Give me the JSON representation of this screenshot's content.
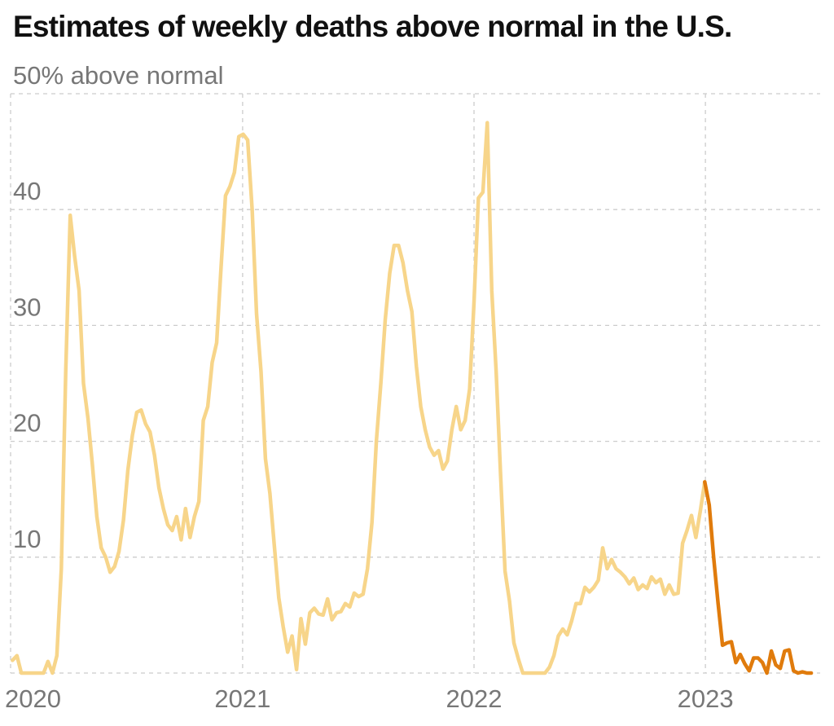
{
  "title": "Estimates of weekly deaths above normal in the U.S.",
  "colors": {
    "history": "#f7d58a",
    "recent": "#e07b0c",
    "grid": "#cccccc",
    "tick": "#777777"
  },
  "chart_data": {
    "type": "line",
    "title": "Estimates of weekly deaths above normal in the U.S.",
    "ylabel": "",
    "ylim": [
      0,
      50
    ],
    "xlim": [
      "2020-01-01",
      "2023-07-01"
    ],
    "grid": true,
    "y_ticks": [
      {
        "value": 50,
        "label": "50% above normal"
      },
      {
        "value": 40,
        "label": "40"
      },
      {
        "value": 30,
        "label": "30"
      },
      {
        "value": 20,
        "label": "20"
      },
      {
        "value": 10,
        "label": "10"
      }
    ],
    "x_ticks": [
      {
        "value": "2020-01-01",
        "label": "2020"
      },
      {
        "value": "2021-01-01",
        "label": "2021"
      },
      {
        "value": "2022-01-01",
        "label": "2022"
      },
      {
        "value": "2023-01-01",
        "label": "2023"
      }
    ],
    "series": [
      {
        "points": [
          [
            "2020-01-04",
            1.1
          ],
          [
            "2020-01-11",
            1.5
          ],
          [
            "2020-01-18",
            0
          ],
          [
            "2020-01-25",
            0
          ],
          [
            "2020-02-01",
            0
          ],
          [
            "2020-02-08",
            0
          ],
          [
            "2020-02-15",
            0
          ],
          [
            "2020-02-22",
            0
          ],
          [
            "2020-02-29",
            1
          ],
          [
            "2020-03-07",
            0
          ],
          [
            "2020-03-14",
            1.5
          ],
          [
            "2020-03-21",
            9
          ],
          [
            "2020-03-28",
            26
          ],
          [
            "2020-04-04",
            39.5
          ],
          [
            "2020-04-11",
            36
          ],
          [
            "2020-04-18",
            33
          ],
          [
            "2020-04-25",
            25
          ],
          [
            "2020-05-02",
            22
          ],
          [
            "2020-05-09",
            18
          ],
          [
            "2020-05-16",
            13.5
          ],
          [
            "2020-05-23",
            10.8
          ],
          [
            "2020-05-30",
            10
          ],
          [
            "2020-06-06",
            8.7
          ],
          [
            "2020-06-13",
            9.2
          ],
          [
            "2020-06-20",
            10.5
          ],
          [
            "2020-06-27",
            13.2
          ],
          [
            "2020-07-04",
            17.5
          ],
          [
            "2020-07-11",
            20.5
          ],
          [
            "2020-07-18",
            22.5
          ],
          [
            "2020-07-25",
            22.7
          ],
          [
            "2020-08-01",
            21.5
          ],
          [
            "2020-08-08",
            20.8
          ],
          [
            "2020-08-15",
            18.8
          ],
          [
            "2020-08-22",
            16
          ],
          [
            "2020-08-29",
            14.2
          ],
          [
            "2020-09-05",
            12.8
          ],
          [
            "2020-09-12",
            12.3
          ],
          [
            "2020-09-19",
            13.5
          ],
          [
            "2020-09-26",
            11.5
          ],
          [
            "2020-10-03",
            14.2
          ],
          [
            "2020-10-10",
            11.7
          ],
          [
            "2020-10-17",
            13.5
          ],
          [
            "2020-10-24",
            14.8
          ],
          [
            "2020-10-31",
            21.8
          ],
          [
            "2020-11-07",
            23
          ],
          [
            "2020-11-14",
            26.8
          ],
          [
            "2020-11-21",
            28.5
          ],
          [
            "2020-11-28",
            35
          ],
          [
            "2020-12-05",
            41.2
          ],
          [
            "2020-12-12",
            42
          ],
          [
            "2020-12-19",
            43.2
          ],
          [
            "2020-12-26",
            46.3
          ],
          [
            "2021-01-02",
            46.5
          ],
          [
            "2021-01-09",
            46
          ],
          [
            "2021-01-16",
            40
          ],
          [
            "2021-01-23",
            31
          ],
          [
            "2021-01-30",
            26
          ],
          [
            "2021-02-06",
            18.5
          ],
          [
            "2021-02-13",
            15.5
          ],
          [
            "2021-02-20",
            11
          ],
          [
            "2021-02-27",
            6.5
          ],
          [
            "2021-03-06",
            4
          ],
          [
            "2021-03-13",
            1.8
          ],
          [
            "2021-03-20",
            3.2
          ],
          [
            "2021-03-27",
            0.3
          ],
          [
            "2021-04-03",
            4.7
          ],
          [
            "2021-04-10",
            2.5
          ],
          [
            "2021-04-17",
            5.2
          ],
          [
            "2021-04-24",
            5.6
          ],
          [
            "2021-05-01",
            5.1
          ],
          [
            "2021-05-08",
            5
          ],
          [
            "2021-05-15",
            6.4
          ],
          [
            "2021-05-22",
            4.6
          ],
          [
            "2021-05-29",
            5.2
          ],
          [
            "2021-06-05",
            5.3
          ],
          [
            "2021-06-12",
            6
          ],
          [
            "2021-06-19",
            5.7
          ],
          [
            "2021-06-26",
            6.9
          ],
          [
            "2021-07-03",
            6.6
          ],
          [
            "2021-07-10",
            6.8
          ],
          [
            "2021-07-17",
            9
          ],
          [
            "2021-07-24",
            13
          ],
          [
            "2021-07-31",
            20
          ],
          [
            "2021-08-07",
            25
          ],
          [
            "2021-08-14",
            30.5
          ],
          [
            "2021-08-21",
            34.5
          ],
          [
            "2021-08-28",
            36.9
          ],
          [
            "2021-09-04",
            36.9
          ],
          [
            "2021-09-11",
            35.4
          ],
          [
            "2021-09-18",
            33
          ],
          [
            "2021-09-25",
            31.2
          ],
          [
            "2021-10-02",
            26.5
          ],
          [
            "2021-10-09",
            23
          ],
          [
            "2021-10-16",
            21
          ],
          [
            "2021-10-23",
            19.5
          ],
          [
            "2021-10-30",
            18.8
          ],
          [
            "2021-11-06",
            19.2
          ],
          [
            "2021-11-13",
            17.6
          ],
          [
            "2021-11-20",
            18.3
          ],
          [
            "2021-11-27",
            21
          ],
          [
            "2021-12-04",
            23
          ],
          [
            "2021-12-11",
            21
          ],
          [
            "2021-12-18",
            21.8
          ],
          [
            "2021-12-25",
            24.5
          ],
          [
            "2022-01-01",
            32
          ],
          [
            "2022-01-08",
            41
          ],
          [
            "2022-01-15",
            41.5
          ],
          [
            "2022-01-22",
            47.5
          ],
          [
            "2022-01-29",
            33
          ],
          [
            "2022-02-05",
            26
          ],
          [
            "2022-02-12",
            17
          ],
          [
            "2022-02-19",
            8.8
          ],
          [
            "2022-02-26",
            6.2
          ],
          [
            "2022-03-05",
            2.6
          ],
          [
            "2022-03-12",
            1.2
          ],
          [
            "2022-03-19",
            0
          ],
          [
            "2022-03-26",
            0
          ],
          [
            "2022-04-02",
            0
          ],
          [
            "2022-04-09",
            0
          ],
          [
            "2022-04-16",
            0
          ],
          [
            "2022-04-23",
            0
          ],
          [
            "2022-04-30",
            0.5
          ],
          [
            "2022-05-07",
            1.5
          ],
          [
            "2022-05-14",
            3.2
          ],
          [
            "2022-05-21",
            3.8
          ],
          [
            "2022-05-28",
            3.3
          ],
          [
            "2022-06-04",
            4.5
          ],
          [
            "2022-06-11",
            6
          ],
          [
            "2022-06-18",
            6
          ],
          [
            "2022-06-25",
            7.4
          ],
          [
            "2022-07-02",
            7
          ],
          [
            "2022-07-09",
            7.4
          ],
          [
            "2022-07-16",
            8
          ],
          [
            "2022-07-23",
            10.8
          ],
          [
            "2022-07-30",
            9
          ],
          [
            "2022-08-06",
            9.8
          ],
          [
            "2022-08-13",
            9
          ],
          [
            "2022-08-20",
            8.7
          ],
          [
            "2022-08-27",
            8.3
          ],
          [
            "2022-09-03",
            7.7
          ],
          [
            "2022-09-10",
            8.2
          ],
          [
            "2022-09-17",
            7.2
          ],
          [
            "2022-09-24",
            7.6
          ],
          [
            "2022-10-01",
            7.3
          ],
          [
            "2022-10-08",
            8.3
          ],
          [
            "2022-10-15",
            7.8
          ],
          [
            "2022-10-22",
            8.1
          ],
          [
            "2022-10-29",
            6.8
          ],
          [
            "2022-11-05",
            7.6
          ],
          [
            "2022-11-12",
            6.8
          ],
          [
            "2022-11-19",
            6.9
          ],
          [
            "2022-11-26",
            11.2
          ],
          [
            "2022-12-03",
            12.3
          ],
          [
            "2022-12-10",
            13.6
          ],
          [
            "2022-12-17",
            11.7
          ],
          [
            "2022-12-24",
            14
          ],
          [
            "2022-12-31",
            16.5
          ]
        ]
      },
      {
        "points": [
          [
            "2022-12-31",
            16.5
          ],
          [
            "2023-01-07",
            14.5
          ],
          [
            "2023-01-14",
            10
          ],
          [
            "2023-01-21",
            6
          ],
          [
            "2023-01-28",
            2.4
          ],
          [
            "2023-02-04",
            2.6
          ],
          [
            "2023-02-11",
            2.7
          ],
          [
            "2023-02-18",
            0.9
          ],
          [
            "2023-02-25",
            1.6
          ],
          [
            "2023-03-04",
            0.8
          ],
          [
            "2023-03-11",
            0.2
          ],
          [
            "2023-03-18",
            1.3
          ],
          [
            "2023-03-25",
            1.3
          ],
          [
            "2023-04-01",
            0.9
          ],
          [
            "2023-04-08",
            0
          ],
          [
            "2023-04-15",
            1.9
          ],
          [
            "2023-04-22",
            0.7
          ],
          [
            "2023-04-29",
            0.4
          ],
          [
            "2023-05-06",
            1.9
          ],
          [
            "2023-05-13",
            2
          ],
          [
            "2023-05-20",
            0.2
          ],
          [
            "2023-05-27",
            0
          ],
          [
            "2023-06-03",
            0.1
          ],
          [
            "2023-06-10",
            0
          ],
          [
            "2023-06-17",
            0
          ]
        ]
      }
    ]
  }
}
